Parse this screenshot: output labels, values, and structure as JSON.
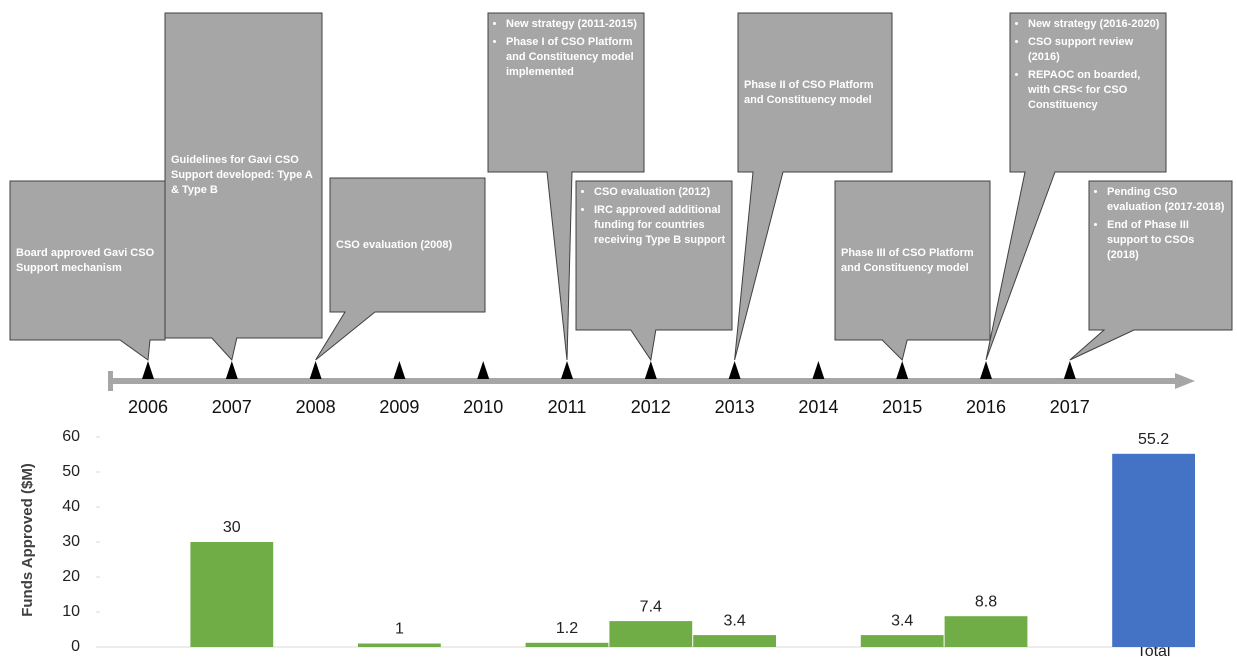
{
  "chart_data": {
    "type": "bar",
    "y_label": "Funds Approved ($M)",
    "categories": [
      "2006",
      "2007",
      "2008",
      "2009",
      "2010",
      "2011",
      "2012",
      "2013",
      "2014",
      "2015",
      "2016",
      "2017",
      "Total"
    ],
    "values": [
      null,
      30,
      null,
      1,
      null,
      1.2,
      7.4,
      3.4,
      null,
      3.4,
      8.8,
      null,
      55.2
    ],
    "colors": [
      "#70ad47",
      "#70ad47",
      "#70ad47",
      "#70ad47",
      "#70ad47",
      "#70ad47",
      "#70ad47",
      "#70ad47",
      "#70ad47",
      "#70ad47",
      "#70ad47",
      "#70ad47",
      "#4472c4"
    ],
    "ylim": [
      0,
      60
    ],
    "yticks": [
      0,
      10,
      20,
      30,
      40,
      50,
      60
    ],
    "grid": false
  },
  "timeline": {
    "events": [
      {
        "text": "Board approved Gavi CSO Support mechanism"
      },
      {
        "text": "Guidelines for Gavi CSO Support developed: Type A & Type B"
      },
      {
        "text": "CSO evaluation (2008)"
      },
      {
        "bullets": [
          "New strategy (2011-2015)",
          "Phase I of CSO Platform and Constituency model implemented"
        ]
      },
      {
        "bullets": [
          "CSO evaluation (2012)",
          "IRC approved additional funding for countries receiving  Type B support"
        ]
      },
      {
        "text": "Phase II of CSO Platform and Constituency model"
      },
      {
        "text": "Phase III of CSO Platform and Constituency model"
      },
      {
        "bullets": [
          "New strategy (2016-2020)",
          "CSO support review (2016)",
          "REPAOC on boarded, with CRS< for CSO Constituency"
        ]
      },
      {
        "bullets": [
          "Pending CSO evaluation (2017-2018)",
          "End of Phase III support to CSOs (2018)"
        ]
      }
    ]
  }
}
